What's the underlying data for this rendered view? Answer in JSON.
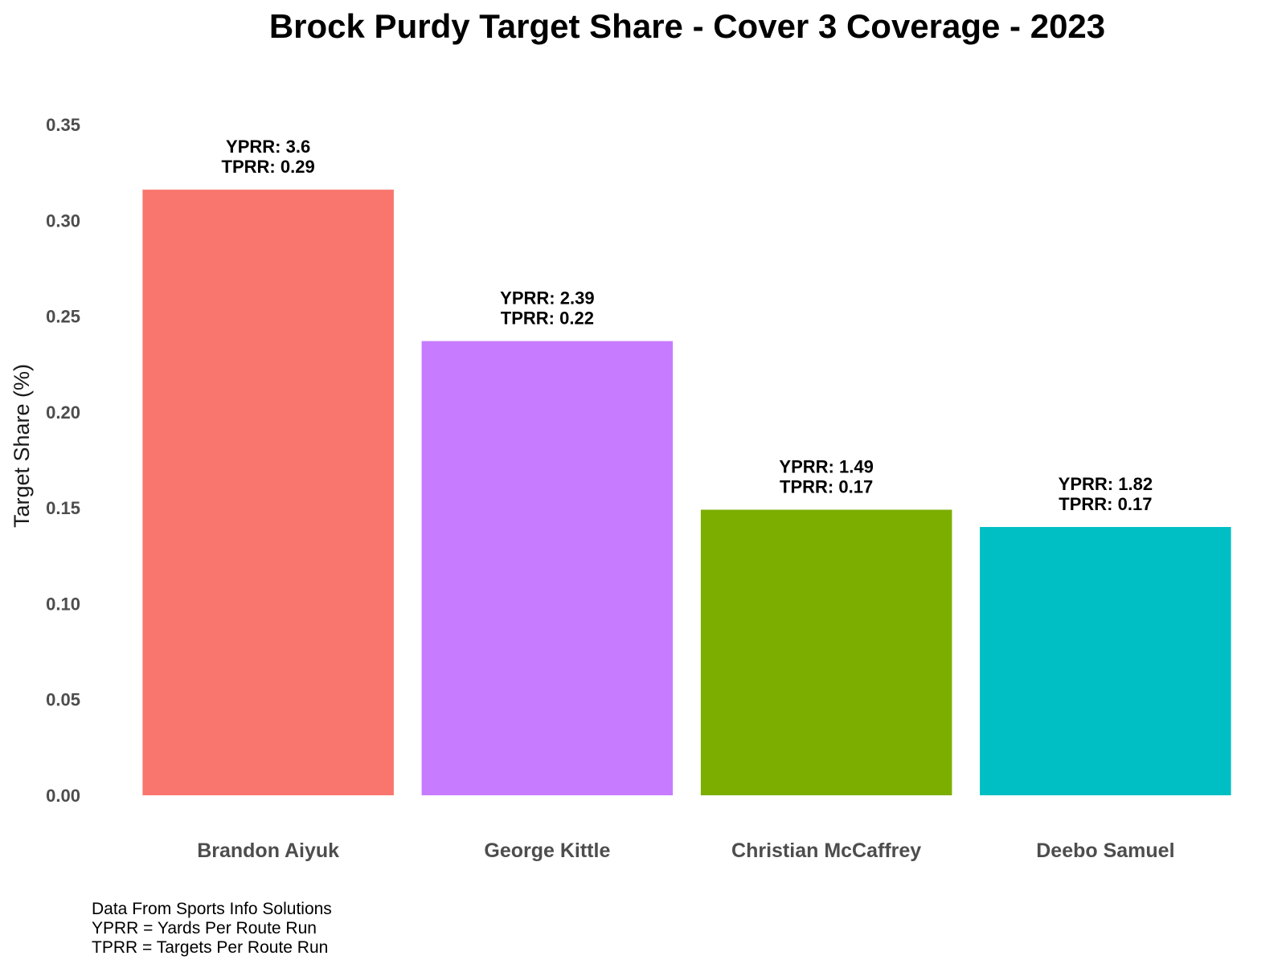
{
  "chart_data": {
    "type": "bar",
    "title": "Brock Purdy Target Share - Cover 3 Coverage - 2023",
    "xlabel": "",
    "ylabel": "Target Share (%)",
    "ylim": [
      0,
      0.35
    ],
    "yticks": [
      "0.00",
      "0.05",
      "0.10",
      "0.15",
      "0.20",
      "0.25",
      "0.30",
      "0.35"
    ],
    "grid": false,
    "legend": "none",
    "categories": [
      "Brandon Aiyuk",
      "George Kittle",
      "Christian McCaffrey",
      "Deebo Samuel"
    ],
    "values": [
      0.316,
      0.237,
      0.149,
      0.14
    ],
    "colors": [
      "#F8766D",
      "#C77CFF",
      "#7CAE00",
      "#00BFC4"
    ],
    "annotations": [
      [
        "YPRR: 3.6",
        "TPRR: 0.29"
      ],
      [
        "YPRR: 2.39",
        "TPRR: 0.22"
      ],
      [
        "YPRR: 1.49",
        "TPRR: 0.17"
      ],
      [
        "YPRR: 1.82",
        "TPRR: 0.17"
      ]
    ],
    "caption": [
      "Data From Sports Info Solutions",
      "YPRR = Yards Per Route Run",
      "TPRR = Targets Per Route Run"
    ]
  }
}
